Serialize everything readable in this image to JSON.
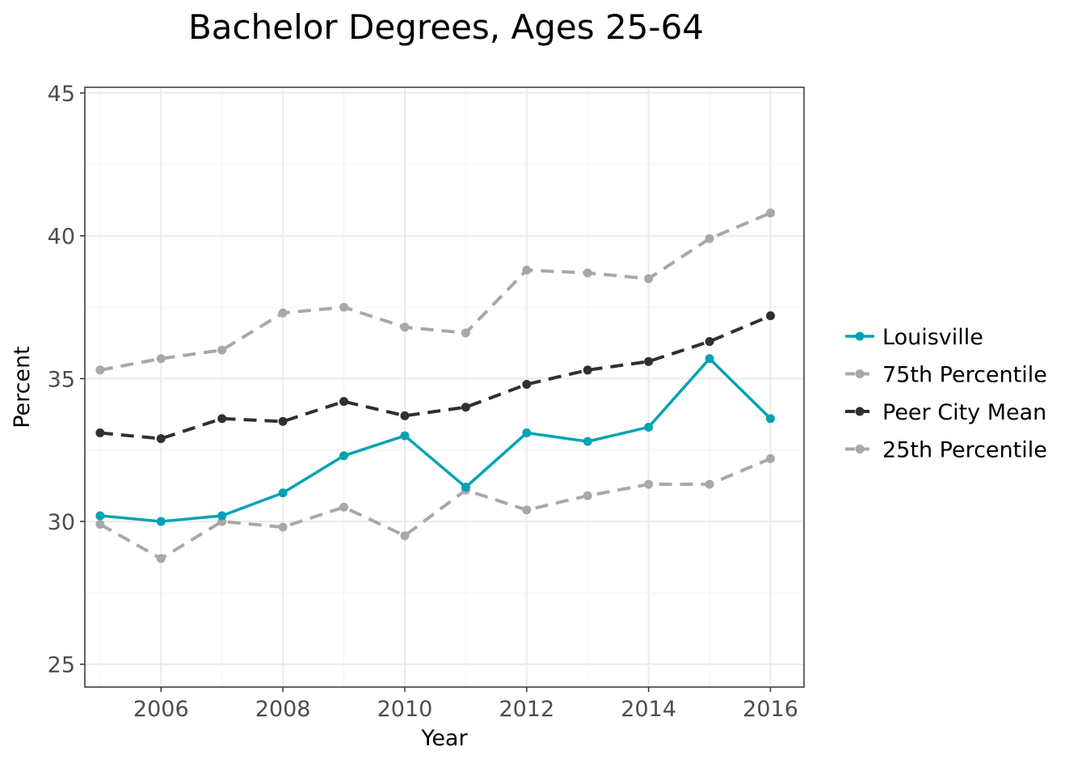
{
  "chart_data": {
    "type": "line",
    "title": "Bachelor Degrees, Ages 25-64",
    "xlabel": "Year",
    "ylabel": "Percent",
    "xlim": [
      2004.75,
      2016.55
    ],
    "ylim": [
      24.2,
      45.2
    ],
    "x_ticks": [
      2006,
      2008,
      2010,
      2012,
      2014,
      2016
    ],
    "y_ticks": [
      25,
      30,
      35,
      40,
      45
    ],
    "grid": true,
    "legend_position": "right",
    "x": [
      2005,
      2006,
      2007,
      2008,
      2009,
      2010,
      2011,
      2012,
      2013,
      2014,
      2015,
      2016
    ],
    "series": [
      {
        "name": "Louisville",
        "color": "#00a3b4",
        "dashed": false,
        "values": [
          30.2,
          30.0,
          30.2,
          31.0,
          32.3,
          33.0,
          31.2,
          33.1,
          32.8,
          33.3,
          35.7,
          33.6
        ]
      },
      {
        "name": "75th Percentile",
        "color": "#a8a8a8",
        "dashed": true,
        "values": [
          35.3,
          35.7,
          36.0,
          37.3,
          37.5,
          36.8,
          36.6,
          38.8,
          38.7,
          38.5,
          39.9,
          40.8
        ]
      },
      {
        "name": "Peer City Mean",
        "color": "#303030",
        "dashed": true,
        "values": [
          33.1,
          32.9,
          33.6,
          33.5,
          34.2,
          33.7,
          34.0,
          34.8,
          35.3,
          35.6,
          36.3,
          37.2
        ]
      },
      {
        "name": "25th Percentile",
        "color": "#a8a8a8",
        "dashed": true,
        "values": [
          29.9,
          28.7,
          30.0,
          29.8,
          30.5,
          29.5,
          31.1,
          30.4,
          30.9,
          31.3,
          31.3,
          32.2
        ]
      }
    ]
  }
}
